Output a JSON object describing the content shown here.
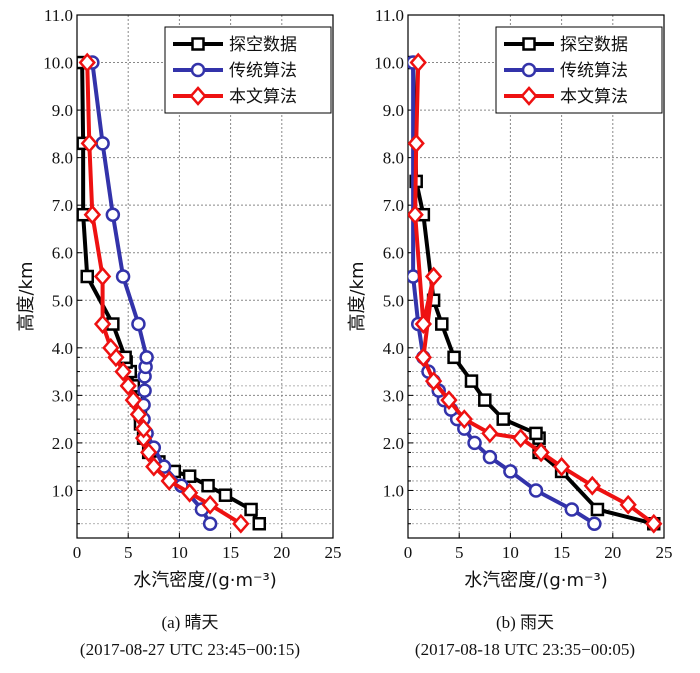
{
  "chart_data": [
    {
      "type": "line",
      "panel": "a",
      "xlabel": "水汽密度/(g·m⁻³)",
      "ylabel": "高度/km",
      "xlim": [
        0,
        25
      ],
      "ylim": [
        0,
        11
      ],
      "xticks": [
        "0",
        "5",
        "10",
        "15",
        "20",
        "25"
      ],
      "yticks": [
        "1.0",
        "2.0",
        "3.0",
        "4.0",
        "5.0",
        "6.0",
        "7.0",
        "8.0",
        "9.0",
        "10.0",
        "11.0"
      ],
      "y_minor_grid": [
        0.3,
        0.6,
        1.2,
        1.5,
        1.8,
        2.2,
        2.5,
        2.8,
        3.2,
        3.5,
        3.8
      ],
      "caption": "(a) 晴天",
      "time": "(2017-08-27 UTC 23:45−00:15)",
      "series": [
        {
          "name": "探空数据",
          "color": "#000000",
          "marker": "square",
          "x": [
            17.8,
            17,
            14.5,
            12.8,
            11,
            9.5,
            8,
            7,
            6.5,
            6.2,
            6.2,
            5.8,
            5.5,
            5.2,
            4.8,
            4.7,
            3.5,
            1.0,
            0.6,
            0.6,
            0.5
          ],
          "y": [
            0.3,
            0.6,
            0.9,
            1.1,
            1.3,
            1.4,
            1.6,
            1.8,
            2.1,
            2.4,
            2.6,
            2.9,
            3.2,
            3.5,
            3.7,
            3.8,
            4.5,
            5.5,
            6.8,
            8.3,
            10.0
          ]
        },
        {
          "name": "传统算法",
          "color": "#3333aa",
          "marker": "circle",
          "x": [
            13,
            12.2,
            10.2,
            8.5,
            7.5,
            6.8,
            6.5,
            6.5,
            6.6,
            6.6,
            6.7,
            6.8,
            6.0,
            4.5,
            3.5,
            2.5,
            1.5
          ],
          "y": [
            0.3,
            0.6,
            1.1,
            1.5,
            1.9,
            2.2,
            2.5,
            2.8,
            3.1,
            3.4,
            3.6,
            3.8,
            4.5,
            5.5,
            6.8,
            8.3,
            10.0
          ]
        },
        {
          "name": "本文算法",
          "color": "#ee1111",
          "marker": "diamond",
          "x": [
            16,
            13,
            11,
            9,
            7.5,
            7,
            6.5,
            6.5,
            6.0,
            5.5,
            5.0,
            4.5,
            3.8,
            3.3,
            2.5,
            2.5,
            1.5,
            1.5,
            1.2,
            1.0
          ],
          "y": [
            0.3,
            0.7,
            0.95,
            1.2,
            1.5,
            1.8,
            2.1,
            2.3,
            2.6,
            2.9,
            3.2,
            3.5,
            3.8,
            4.0,
            4.5,
            5.5,
            6.8,
            6.8,
            8.3,
            10.0
          ]
        }
      ]
    },
    {
      "type": "line",
      "panel": "b",
      "xlabel": "水汽密度/(g·m⁻³)",
      "ylabel": "高度/km",
      "xlim": [
        0,
        25
      ],
      "ylim": [
        0,
        11
      ],
      "xticks": [
        "0",
        "5",
        "10",
        "15",
        "20",
        "25"
      ],
      "yticks": [
        "1.0",
        "2.0",
        "3.0",
        "4.0",
        "5.0",
        "6.0",
        "7.0",
        "8.0",
        "9.0",
        "10.0",
        "11.0"
      ],
      "y_minor_grid": [
        0.3,
        0.6,
        1.2,
        1.5,
        1.8,
        2.2,
        2.5,
        2.8,
        3.2,
        3.5,
        3.8
      ],
      "caption": "(b) 雨天",
      "time": "(2017-08-18 UTC 23:35−00:05)",
      "series": [
        {
          "name": "探空数据",
          "color": "#000000",
          "marker": "square",
          "x": [
            24,
            18.5,
            15,
            12.8,
            12.8,
            12.5,
            9.3,
            7.5,
            6.2,
            4.5,
            3.3,
            2.5,
            1.5,
            0.8,
            0.5
          ],
          "y": [
            0.3,
            0.6,
            1.4,
            1.8,
            2.1,
            2.2,
            2.5,
            2.9,
            3.3,
            3.8,
            4.5,
            5.0,
            6.8,
            7.5,
            10.0
          ]
        },
        {
          "name": "传统算法",
          "color": "#3333aa",
          "marker": "circle",
          "x": [
            18.2,
            16,
            12.5,
            10,
            8,
            6.5,
            5.5,
            4.8,
            4.2,
            3.5,
            3.0,
            2.5,
            2.0,
            1.5,
            1.0,
            0.5,
            0.5
          ],
          "y": [
            0.3,
            0.6,
            1.0,
            1.4,
            1.7,
            2.0,
            2.3,
            2.5,
            2.7,
            2.9,
            3.1,
            3.3,
            3.5,
            3.8,
            4.5,
            5.5,
            10.0
          ]
        },
        {
          "name": "本文算法",
          "color": "#ee1111",
          "marker": "diamond",
          "x": [
            24,
            21.5,
            18,
            15,
            13,
            11,
            8,
            5.5,
            4,
            2.5,
            1.5,
            2.5,
            1.5,
            0.7,
            0.8,
            1.0
          ],
          "y": [
            0.3,
            0.7,
            1.1,
            1.5,
            1.8,
            2.1,
            2.2,
            2.5,
            2.9,
            3.3,
            3.8,
            5.5,
            4.5,
            6.8,
            8.3,
            10.0
          ]
        }
      ]
    }
  ]
}
